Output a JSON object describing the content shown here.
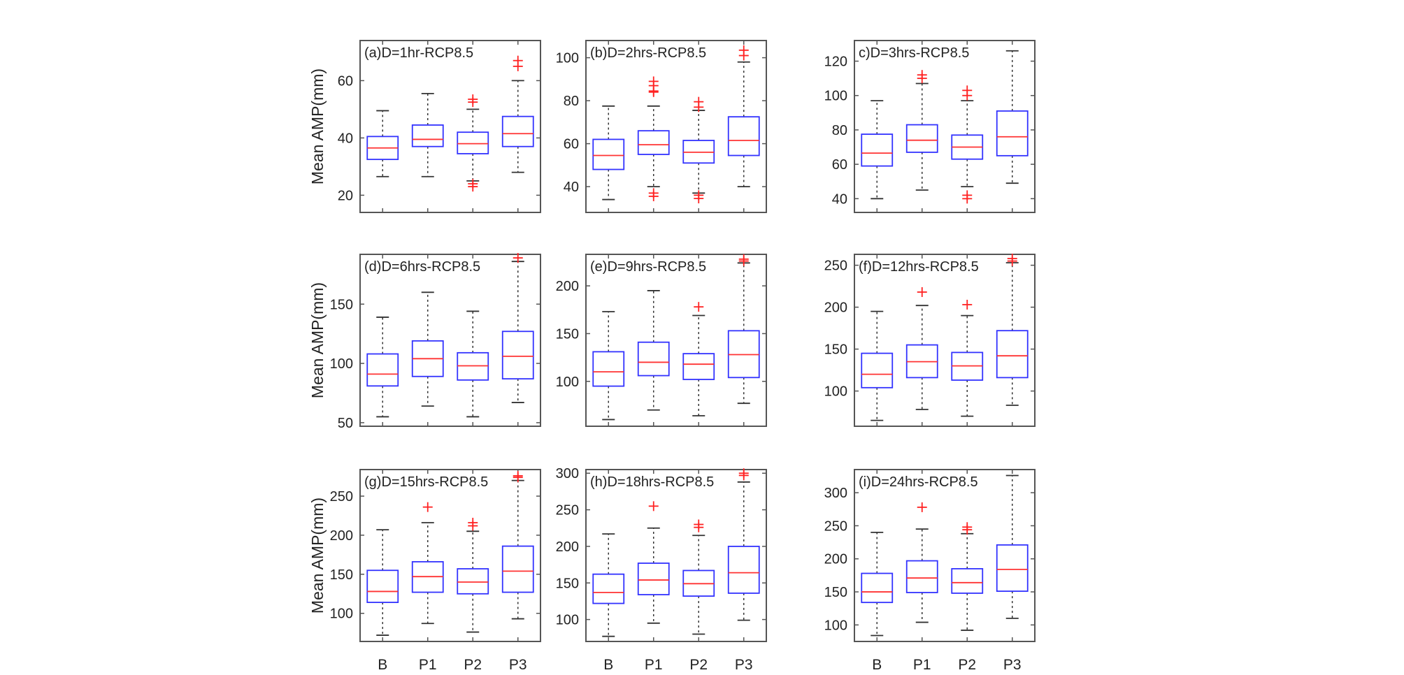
{
  "colors": {
    "box": "#3333ff",
    "median": "#ff3333",
    "outlier": "#ff2222",
    "whisker": "#333333",
    "frame": "#555555"
  },
  "shared": {
    "ylabel": "Mean AMP(mm)",
    "categories": [
      "B",
      "P1",
      "P2",
      "P3"
    ]
  },
  "chart_data": [
    {
      "type": "box",
      "title": "(a)D=1hr-RCP8.5",
      "ylabel": "Mean AMP(mm)",
      "categories": [
        "B",
        "P1",
        "P2",
        "P3"
      ],
      "ylim": [
        14,
        74
      ],
      "yticks": [
        20,
        40,
        60
      ],
      "boxes": [
        {
          "min": 26.5,
          "q1": 32.5,
          "median": 36.5,
          "q3": 40.5,
          "max": 49.5,
          "outliers": []
        },
        {
          "min": 26.5,
          "q1": 37,
          "median": 39.5,
          "q3": 44.5,
          "max": 55.5,
          "outliers": []
        },
        {
          "min": 25,
          "q1": 34.5,
          "median": 38,
          "q3": 42,
          "max": 50,
          "outliers": [
            53.5,
            52.5,
            24,
            23
          ]
        },
        {
          "min": 28,
          "q1": 37,
          "median": 41.5,
          "q3": 47.5,
          "max": 60,
          "outliers": [
            67,
            65
          ]
        }
      ]
    },
    {
      "type": "box",
      "title": "(b)D=2hrs-RCP8.5",
      "ylabel": "",
      "categories": [
        "B",
        "P1",
        "P2",
        "P3"
      ],
      "ylim": [
        28,
        108
      ],
      "yticks": [
        40,
        60,
        80,
        100
      ],
      "boxes": [
        {
          "min": 34,
          "q1": 48,
          "median": 54.5,
          "q3": 62,
          "max": 77.5,
          "outliers": []
        },
        {
          "min": 40,
          "q1": 55,
          "median": 59.5,
          "q3": 66,
          "max": 77.5,
          "outliers": [
            89,
            87,
            84.5,
            84,
            37,
            35.5
          ]
        },
        {
          "min": 37,
          "q1": 51,
          "median": 56,
          "q3": 61.5,
          "max": 75.5,
          "outliers": [
            79.5,
            77,
            36,
            34.5
          ]
        },
        {
          "min": 40,
          "q1": 54.5,
          "median": 61.5,
          "q3": 72.5,
          "max": 98,
          "outliers": [
            103.5,
            101
          ]
        }
      ]
    },
    {
      "type": "box",
      "title": "c)D=3hrs-RCP8.5",
      "ylabel": "",
      "categories": [
        "B",
        "P1",
        "P2",
        "P3"
      ],
      "ylim": [
        32,
        132
      ],
      "yticks": [
        40,
        60,
        80,
        100,
        120
      ],
      "boxes": [
        {
          "min": 40,
          "q1": 59,
          "median": 66.5,
          "q3": 77.5,
          "max": 97,
          "outliers": []
        },
        {
          "min": 45,
          "q1": 67,
          "median": 74,
          "q3": 83,
          "max": 107,
          "outliers": [
            112,
            110
          ]
        },
        {
          "min": 47,
          "q1": 63,
          "median": 70,
          "q3": 77,
          "max": 97,
          "outliers": [
            103,
            100,
            42,
            40
          ]
        },
        {
          "min": 49,
          "q1": 65,
          "median": 76,
          "q3": 91,
          "max": 126,
          "outliers": []
        }
      ]
    },
    {
      "type": "box",
      "title": "(d)D=6hrs-RCP8.5",
      "ylabel": "Mean AMP(mm)",
      "categories": [
        "B",
        "P1",
        "P2",
        "P3"
      ],
      "ylim": [
        47,
        192
      ],
      "yticks": [
        50,
        100,
        150
      ],
      "boxes": [
        {
          "min": 55,
          "q1": 81,
          "median": 91,
          "q3": 108,
          "max": 139,
          "outliers": []
        },
        {
          "min": 64,
          "q1": 89,
          "median": 104,
          "q3": 119,
          "max": 160,
          "outliers": []
        },
        {
          "min": 55,
          "q1": 86,
          "median": 98,
          "q3": 109,
          "max": 144,
          "outliers": []
        },
        {
          "min": 67,
          "q1": 87,
          "median": 106,
          "q3": 127,
          "max": 186,
          "outliers": [
            189
          ]
        }
      ]
    },
    {
      "type": "box",
      "title": "(e)D=9hrs-RCP8.5",
      "ylabel": "",
      "categories": [
        "B",
        "P1",
        "P2",
        "P3"
      ],
      "ylim": [
        53,
        233
      ],
      "yticks": [
        100,
        150,
        200
      ],
      "boxes": [
        {
          "min": 60,
          "q1": 95,
          "median": 110,
          "q3": 131,
          "max": 173,
          "outliers": []
        },
        {
          "min": 70,
          "q1": 106,
          "median": 120,
          "q3": 141,
          "max": 195,
          "outliers": []
        },
        {
          "min": 64,
          "q1": 102,
          "median": 118,
          "q3": 129,
          "max": 169,
          "outliers": [
            178
          ]
        },
        {
          "min": 77,
          "q1": 104,
          "median": 128,
          "q3": 153,
          "max": 224,
          "outliers": [
            226,
            228
          ]
        }
      ]
    },
    {
      "type": "box",
      "title": "(f)D=12hrs-RCP8.5",
      "ylabel": "",
      "categories": [
        "B",
        "P1",
        "P2",
        "P3"
      ],
      "ylim": [
        58,
        263
      ],
      "yticks": [
        100,
        150,
        200,
        250
      ],
      "boxes": [
        {
          "min": 65,
          "q1": 104,
          "median": 120,
          "q3": 145,
          "max": 195,
          "outliers": []
        },
        {
          "min": 78,
          "q1": 116,
          "median": 135,
          "q3": 155,
          "max": 202,
          "outliers": [
            218
          ]
        },
        {
          "min": 70,
          "q1": 113,
          "median": 130,
          "q3": 146,
          "max": 190,
          "outliers": [
            203
          ]
        },
        {
          "min": 83,
          "q1": 116,
          "median": 142,
          "q3": 172,
          "max": 253,
          "outliers": [
            255,
            258
          ]
        }
      ]
    },
    {
      "type": "box",
      "title": "(g)D=15hrs-RCP8.5",
      "ylabel": "Mean AMP(mm)",
      "categories": [
        "B",
        "P1",
        "P2",
        "P3"
      ],
      "ylim": [
        64,
        284
      ],
      "yticks": [
        100,
        150,
        200,
        250
      ],
      "boxes": [
        {
          "min": 72,
          "q1": 114,
          "median": 128,
          "q3": 155,
          "max": 207,
          "outliers": []
        },
        {
          "min": 87,
          "q1": 127,
          "median": 147,
          "q3": 166,
          "max": 216,
          "outliers": [
            236
          ]
        },
        {
          "min": 76,
          "q1": 125,
          "median": 140,
          "q3": 157,
          "max": 205,
          "outliers": [
            216,
            212
          ]
        },
        {
          "min": 93,
          "q1": 127,
          "median": 154,
          "q3": 186,
          "max": 270,
          "outliers": [
            274,
            276
          ]
        }
      ]
    },
    {
      "type": "box",
      "title": "(h)D=18hrs-RCP8.5",
      "ylabel": "",
      "categories": [
        "B",
        "P1",
        "P2",
        "P3"
      ],
      "ylim": [
        70,
        305
      ],
      "yticks": [
        100,
        150,
        200,
        250,
        300
      ],
      "boxes": [
        {
          "min": 77,
          "q1": 122,
          "median": 137,
          "q3": 162,
          "max": 217,
          "outliers": []
        },
        {
          "min": 95,
          "q1": 134,
          "median": 154,
          "q3": 177,
          "max": 225,
          "outliers": [
            255
          ]
        },
        {
          "min": 80,
          "q1": 132,
          "median": 149,
          "q3": 167,
          "max": 215,
          "outliers": [
            230,
            226
          ]
        },
        {
          "min": 99,
          "q1": 136,
          "median": 164,
          "q3": 200,
          "max": 288,
          "outliers": [
            297,
            300
          ]
        }
      ]
    },
    {
      "type": "box",
      "title": "(i)D=24hrs-RCP8.5",
      "ylabel": "",
      "categories": [
        "B",
        "P1",
        "P2",
        "P3"
      ],
      "ylim": [
        75,
        335
      ],
      "yticks": [
        100,
        150,
        200,
        250,
        300
      ],
      "boxes": [
        {
          "min": 84,
          "q1": 134,
          "median": 150,
          "q3": 178,
          "max": 240,
          "outliers": []
        },
        {
          "min": 104,
          "q1": 149,
          "median": 171,
          "q3": 197,
          "max": 245,
          "outliers": [
            278
          ]
        },
        {
          "min": 92,
          "q1": 148,
          "median": 164,
          "q3": 185,
          "max": 238,
          "outliers": [
            248,
            244
          ]
        },
        {
          "min": 110,
          "q1": 151,
          "median": 184,
          "q3": 221,
          "max": 326,
          "outliers": []
        }
      ]
    }
  ]
}
